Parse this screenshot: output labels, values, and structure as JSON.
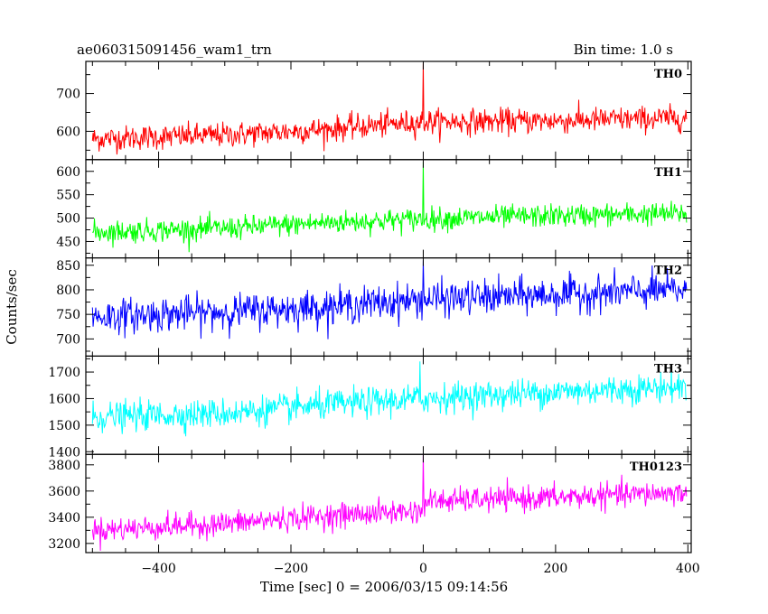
{
  "header": {
    "left_title": "ae060315091456_wam1_trn",
    "right_title": "Bin time: 1.0 s"
  },
  "chart_data": {
    "type": "line",
    "title": "ae060315091456_wam1_trn",
    "subtitle": "Bin time: 1.0 s",
    "xlabel": "Time [sec] 0 = 2006/03/15 09:14:56",
    "ylabel": "Counts/sec",
    "xlim": [
      -510,
      405
    ],
    "x_ticks": [
      -400,
      -200,
      0,
      200,
      400
    ],
    "x_tick_labels": [
      "−400",
      "−200",
      "0",
      "200",
      "400"
    ],
    "bin_time_sec": 1.0,
    "grid": false,
    "legend": "none",
    "panels": [
      {
        "name": "TH0",
        "color": "#ff0000",
        "ylim": [
          525,
          785
        ],
        "y_ticks": [
          600,
          700
        ],
        "y_tick_labels": [
          "600",
          "700"
        ],
        "x_range": [
          -500,
          398
        ],
        "baseline": [
          [
            -500,
            580
          ],
          [
            -300,
            590
          ],
          [
            -150,
            605
          ],
          [
            0,
            625
          ],
          [
            200,
            628
          ],
          [
            398,
            635
          ]
        ],
        "noise_amplitude": 30,
        "spike": {
          "x": 0,
          "peak": 780
        }
      },
      {
        "name": "TH1",
        "color": "#00ff00",
        "ylim": [
          415,
          625
        ],
        "y_ticks": [
          450,
          500,
          550,
          600
        ],
        "y_tick_labels": [
          "450",
          "500",
          "550",
          "600"
        ],
        "x_range": [
          -500,
          398
        ],
        "baseline": [
          [
            -500,
            470
          ],
          [
            -300,
            478
          ],
          [
            -150,
            490
          ],
          [
            0,
            498
          ],
          [
            200,
            505
          ],
          [
            398,
            510
          ]
        ],
        "noise_amplitude": 22,
        "spike": {
          "x": 0,
          "peak": 620
        }
      },
      {
        "name": "TH2",
        "color": "#0000ff",
        "ylim": [
          665,
          865
        ],
        "y_ticks": [
          700,
          750,
          800,
          850
        ],
        "y_tick_labels": [
          "700",
          "750",
          "800",
          "850"
        ],
        "x_range": [
          -500,
          398
        ],
        "baseline": [
          [
            -500,
            745
          ],
          [
            -300,
            755
          ],
          [
            -150,
            765
          ],
          [
            0,
            780
          ],
          [
            200,
            790
          ],
          [
            398,
            800
          ]
        ],
        "noise_amplitude": 32,
        "spike": {
          "x": 0,
          "peak": 860
        }
      },
      {
        "name": "TH3",
        "color": "#00ffff",
        "ylim": [
          1390,
          1760
        ],
        "y_ticks": [
          1400,
          1500,
          1600,
          1700
        ],
        "y_tick_labels": [
          "1400",
          "1500",
          "1600",
          "1700"
        ],
        "x_range": [
          -500,
          398
        ],
        "baseline": [
          [
            -500,
            1530
          ],
          [
            -300,
            1545
          ],
          [
            -150,
            1575
          ],
          [
            0,
            1600
          ],
          [
            200,
            1625
          ],
          [
            398,
            1645
          ]
        ],
        "noise_amplitude": 50,
        "spike": {
          "x": -5,
          "peak": 1740
        }
      },
      {
        "name": "TH0123",
        "color": "#ff00ff",
        "ylim": [
          3130,
          3880
        ],
        "y_ticks": [
          3200,
          3400,
          3600,
          3800
        ],
        "y_tick_labels": [
          "3200",
          "3400",
          "3600",
          "3800"
        ],
        "x_range": [
          -500,
          398
        ],
        "baseline": [
          [
            -500,
            3300
          ],
          [
            -300,
            3350
          ],
          [
            -150,
            3410
          ],
          [
            -1,
            3450
          ],
          [
            1,
            3520
          ],
          [
            200,
            3550
          ],
          [
            398,
            3590
          ]
        ],
        "noise_amplitude": 85,
        "spike": {
          "x": 0,
          "peak": 3880
        }
      }
    ]
  }
}
